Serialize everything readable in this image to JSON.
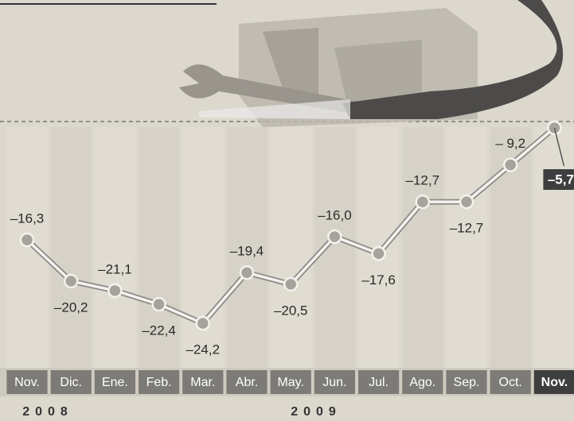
{
  "chart_data": {
    "type": "line",
    "categories": [
      "Nov.",
      "Dic.",
      "Ene.",
      "Feb.",
      "Mar.",
      "Abr.",
      "May.",
      "Jun.",
      "Jul.",
      "Ago.",
      "Sep.",
      "Oct.",
      "Nov."
    ],
    "values": [
      -16.3,
      -20.2,
      -21.1,
      -22.4,
      -24.2,
      -19.4,
      -20.5,
      -16.0,
      -17.6,
      -12.7,
      -12.7,
      -9.2,
      -5.7
    ],
    "value_labels": [
      "–16,3",
      "–20,2",
      "–21,1",
      "–22,4",
      "–24,2",
      "–19,4",
      "–20,5",
      "–16,0",
      "–17,6",
      "–12,7",
      "–12,7",
      "– 9,2",
      "–5,7"
    ],
    "year_labels": [
      "2008",
      "2009"
    ],
    "color": "#8a8a8a"
  }
}
